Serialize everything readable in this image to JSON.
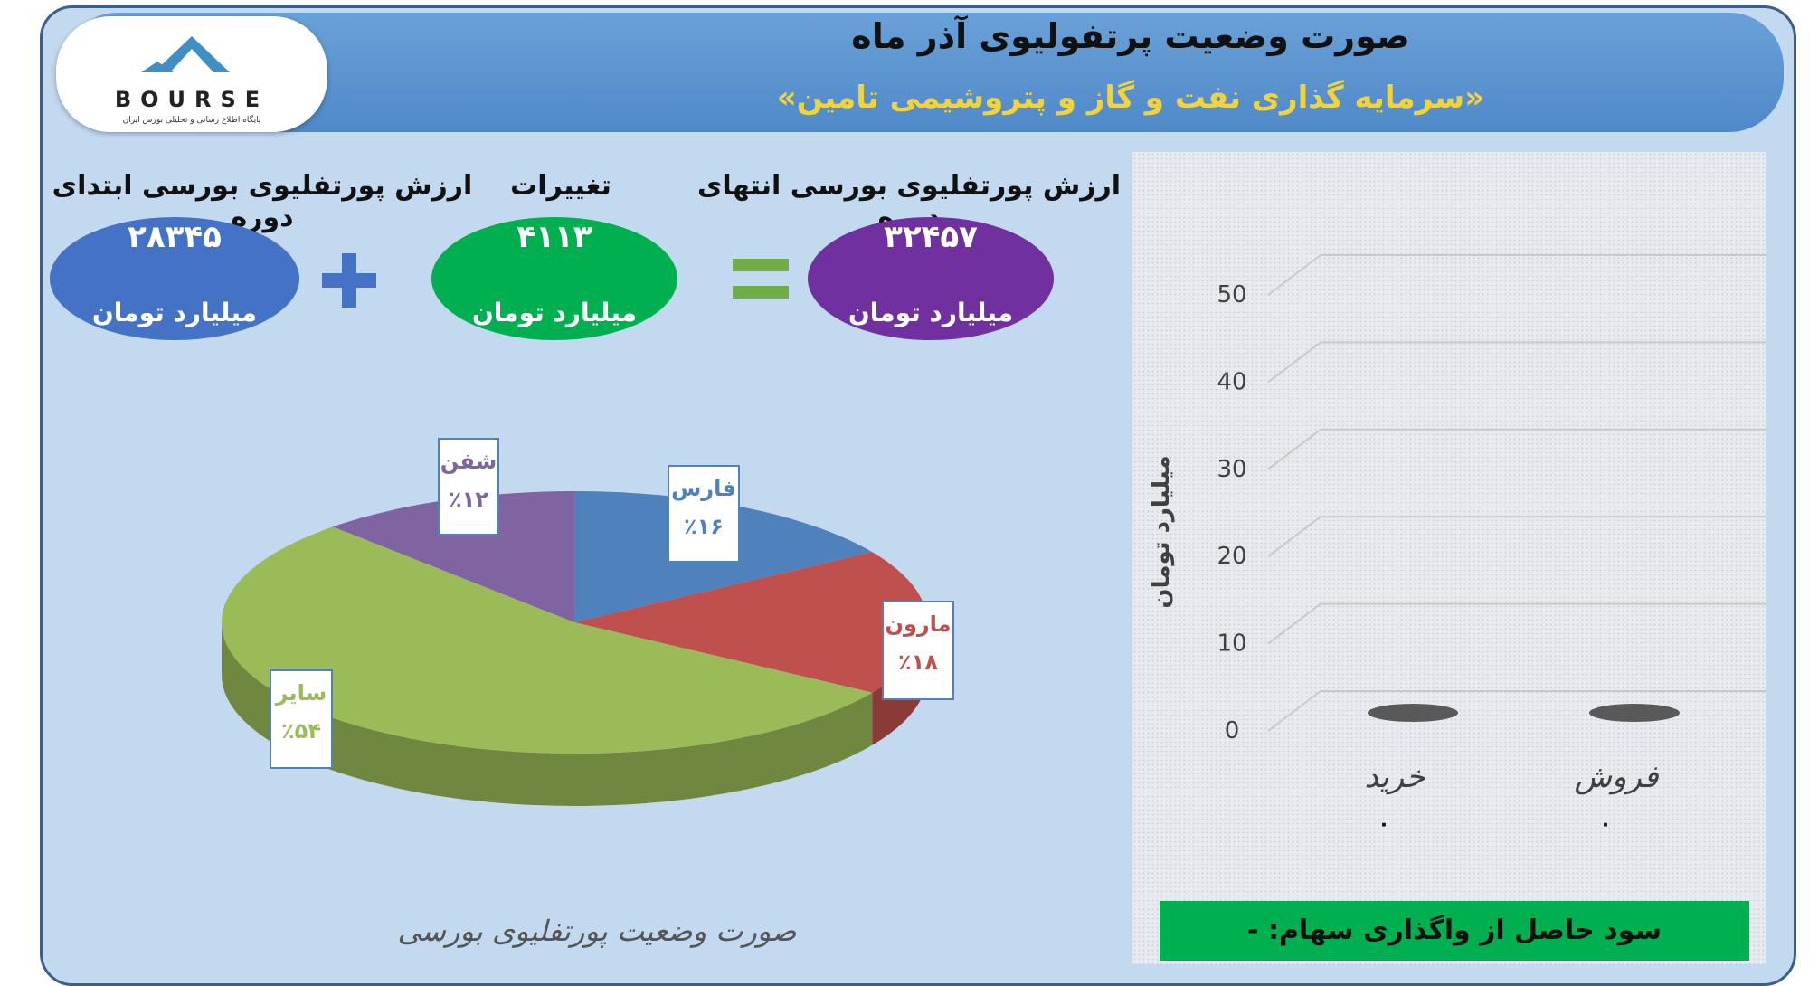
{
  "header": {
    "title": "صورت وضعیت پرتفولیوی آذر ماه",
    "subtitle": "«سرمایه گذاری نفت و گاز و پتروشیمی تامین»"
  },
  "logo": {
    "text": "BOURSE",
    "subtitle": "پایگاه اطلاع رسانی و تحلیلی بورس ایران"
  },
  "summary": {
    "start": {
      "label": "ارزش پورتفلیوی بورسی ابتدای دوره",
      "value": "۲۸۳۴۵",
      "unit": "میلیارد تومان",
      "color": "#4472c4"
    },
    "change": {
      "label": "تغییرات",
      "value": "۴۱۱۳",
      "unit": "میلیارد تومان",
      "color": "#00b050"
    },
    "end": {
      "label": "ارزش پورتفلیوی بورسی انتهای دوره",
      "value": "۳۲۴۵۷",
      "unit": "میلیارد تومان",
      "color": "#7030a0"
    }
  },
  "pie_caption": "صورت وضعیت پورتفلیوی بورسی",
  "profit_bar": {
    "text": "سود حاصل از واگذاری سهام: -",
    "color": "#00b050"
  },
  "chart_data": [
    {
      "type": "pie",
      "categories": [
        "فارس",
        "مارون",
        "سایر",
        "شفن"
      ],
      "values": [
        16,
        18,
        54,
        12
      ],
      "labels": [
        "٪۱۶",
        "٪۱۸",
        "٪۵۴",
        "٪۱۲"
      ],
      "colors": [
        "#4f81bd",
        "#c0504d",
        "#9bbb59",
        "#8064a2"
      ]
    },
    {
      "type": "bar",
      "categories": [
        "خرید",
        "فروش"
      ],
      "values": [
        0,
        0
      ],
      "data_labels": [
        "۰",
        "۰"
      ],
      "ylabel": "میلیارد تومان",
      "ylim": [
        0,
        50
      ],
      "yticks": [
        0,
        10,
        20,
        30,
        40,
        50
      ],
      "grid": true,
      "bar_color": "#595959"
    }
  ]
}
